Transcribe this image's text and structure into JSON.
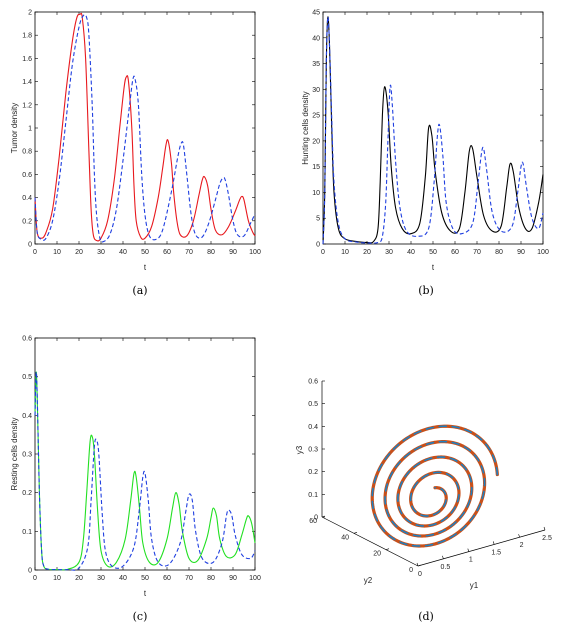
{
  "chart_data": [
    {
      "id": "a",
      "type": "line",
      "caption": "(a)",
      "xlabel": "t",
      "ylabel": "Tumor density",
      "xlim": [
        0,
        100
      ],
      "ylim": [
        0,
        2
      ],
      "xticks": [
        0,
        10,
        20,
        30,
        40,
        50,
        60,
        70,
        80,
        90,
        100
      ],
      "yticks": [
        0,
        0.2,
        0.4,
        0.6,
        0.8,
        1,
        1.2,
        1.4,
        1.6,
        1.8,
        2
      ],
      "ytick_labels": [
        "0",
        "0.2",
        "0.4",
        "0.6",
        "0.8",
        "1",
        "1.2",
        "1.4",
        "1.6",
        "1.8",
        "2"
      ],
      "series": [
        {
          "color": "#e8191e",
          "dash": "solid",
          "x": [
            0,
            1,
            3,
            5,
            8,
            11,
            14,
            17,
            19,
            20.5,
            21.5,
            23,
            24.5,
            25.5,
            26.5,
            28,
            30,
            33,
            36,
            38.5,
            40.5,
            41.5,
            42.5,
            44,
            45,
            46,
            48,
            50,
            53,
            56,
            58,
            59.5,
            60.5,
            62,
            63,
            64.5,
            66,
            69,
            72,
            74.5,
            76,
            77,
            78.5,
            80,
            82,
            85,
            88,
            91,
            93,
            94,
            95,
            97,
            99,
            100
          ],
          "y": [
            0.4,
            0.1,
            0.05,
            0.1,
            0.3,
            0.75,
            1.3,
            1.75,
            1.95,
            1.98,
            1.95,
            1.6,
            0.8,
            0.3,
            0.08,
            0.03,
            0.05,
            0.2,
            0.55,
            1.0,
            1.35,
            1.44,
            1.4,
            1.0,
            0.5,
            0.2,
            0.06,
            0.05,
            0.15,
            0.4,
            0.65,
            0.85,
            0.89,
            0.7,
            0.45,
            0.2,
            0.08,
            0.07,
            0.2,
            0.42,
            0.55,
            0.58,
            0.5,
            0.3,
            0.12,
            0.08,
            0.15,
            0.28,
            0.38,
            0.41,
            0.38,
            0.2,
            0.1,
            0.07
          ]
        },
        {
          "color": "#1f3fe0",
          "dash": "dashed",
          "x": [
            0,
            1,
            3,
            5,
            8,
            11,
            14,
            17,
            20,
            22,
            23.5,
            24.5,
            26,
            27,
            28,
            29.5,
            31,
            34,
            37,
            40,
            43,
            44.5,
            45.5,
            47,
            48.5,
            50,
            52,
            55,
            58,
            62,
            65,
            66.5,
            67.5,
            69,
            71,
            73,
            76,
            79,
            82,
            84,
            85.5,
            86.5,
            88,
            90,
            92,
            95,
            98,
            100
          ],
          "y": [
            0.4,
            0.1,
            0.04,
            0.05,
            0.2,
            0.55,
            1.05,
            1.55,
            1.87,
            1.97,
            1.95,
            1.8,
            1.2,
            0.6,
            0.25,
            0.05,
            0.02,
            0.08,
            0.3,
            0.72,
            1.2,
            1.42,
            1.42,
            1.2,
            0.6,
            0.25,
            0.07,
            0.04,
            0.12,
            0.45,
            0.76,
            0.87,
            0.85,
            0.6,
            0.25,
            0.08,
            0.06,
            0.18,
            0.38,
            0.52,
            0.57,
            0.55,
            0.42,
            0.2,
            0.08,
            0.07,
            0.18,
            0.26
          ]
        }
      ]
    },
    {
      "id": "b",
      "type": "line",
      "caption": "(b)",
      "xlabel": "t",
      "ylabel": "Hunting cells density",
      "xlim": [
        0,
        100
      ],
      "ylim": [
        0,
        45
      ],
      "xticks": [
        0,
        10,
        20,
        30,
        40,
        50,
        60,
        70,
        80,
        90,
        100
      ],
      "yticks": [
        0,
        5,
        10,
        15,
        20,
        25,
        30,
        35,
        40,
        45
      ],
      "ytick_labels": [
        "0",
        "5",
        "10",
        "15",
        "20",
        "25",
        "30",
        "35",
        "40",
        "45"
      ],
      "series": [
        {
          "color": "#000000",
          "dash": "solid",
          "x": [
            0,
            0.8,
            1.5,
            2.2,
            3,
            4,
            5,
            7,
            10,
            15,
            20,
            23,
            25,
            26,
            27,
            28,
            29.5,
            31,
            33,
            36,
            40,
            44,
            46.5,
            48,
            49.5,
            51,
            54,
            58,
            62,
            64.5,
            66.5,
            68,
            70,
            73,
            77,
            81,
            83.5,
            85,
            86.5,
            89,
            92,
            95,
            98,
            100
          ],
          "y": [
            0,
            10,
            35,
            44,
            38,
            22,
            10,
            3,
            1,
            0.5,
            0.3,
            0.5,
            3,
            12,
            25,
            30.5,
            26,
            15,
            7,
            3,
            2,
            4,
            13,
            22.5,
            21,
            14,
            6,
            2.5,
            3,
            10,
            18,
            18.5,
            13,
            5.5,
            2.5,
            3.5,
            11,
            15.5,
            14,
            7,
            3,
            3,
            8,
            13.5
          ]
        },
        {
          "color": "#1f3fe0",
          "dash": "dashed",
          "x": [
            0,
            0.8,
            1.5,
            2.2,
            3,
            4,
            5,
            7,
            10,
            15,
            20,
            25,
            27,
            28.5,
            29.5,
            30.5,
            31.5,
            33,
            35,
            38,
            43,
            48,
            50.5,
            52,
            53,
            54.5,
            56,
            59,
            63,
            68,
            70.5,
            72,
            73,
            74.5,
            77,
            81,
            86,
            88.5,
            90,
            91,
            92.5,
            95,
            98,
            100
          ],
          "y": [
            0,
            10,
            35,
            44,
            38,
            24,
            12,
            4,
            1,
            0.4,
            0.2,
            0.3,
            1.5,
            8,
            20,
            30.5,
            27,
            16,
            7,
            2.5,
            1.5,
            3,
            12,
            21,
            23,
            17,
            8,
            3,
            2,
            4,
            12,
            17.5,
            18.5,
            14,
            6,
            2.5,
            3.5,
            10,
            15,
            15.5,
            11,
            5,
            3,
            6
          ]
        }
      ]
    },
    {
      "id": "c",
      "type": "line",
      "caption": "(c)",
      "xlabel": "t",
      "ylabel": "Resting cells density",
      "xlim": [
        0,
        100
      ],
      "ylim": [
        0,
        0.6
      ],
      "xticks": [
        0,
        10,
        20,
        30,
        40,
        50,
        60,
        70,
        80,
        90,
        100
      ],
      "yticks": [
        0,
        0.1,
        0.2,
        0.3,
        0.4,
        0.5,
        0.6
      ],
      "ytick_labels": [
        "0",
        "0.1",
        "0.2",
        "0.3",
        "0.4",
        "0.5",
        "0.6"
      ],
      "series": [
        {
          "color": "#22e022",
          "dash": "solid",
          "x": [
            0,
            0.5,
            1,
            2,
            3,
            4,
            6,
            10,
            15,
            20,
            22,
            23.5,
            25,
            26,
            27,
            28.5,
            30,
            33,
            37,
            41,
            43.5,
            45,
            46,
            47.5,
            49,
            52,
            56,
            60,
            62.5,
            64,
            65.5,
            67,
            70,
            74,
            78,
            80,
            81,
            82.5,
            84,
            87,
            91,
            94,
            96,
            97,
            98.5,
            100
          ],
          "y": [
            0.4,
            0.51,
            0.45,
            0.2,
            0.05,
            0.01,
            0.002,
            0.001,
            0.002,
            0.02,
            0.08,
            0.2,
            0.33,
            0.345,
            0.3,
            0.15,
            0.05,
            0.01,
            0.02,
            0.08,
            0.18,
            0.25,
            0.24,
            0.16,
            0.07,
            0.02,
            0.02,
            0.08,
            0.16,
            0.2,
            0.17,
            0.1,
            0.03,
            0.025,
            0.08,
            0.135,
            0.16,
            0.14,
            0.08,
            0.035,
            0.04,
            0.09,
            0.13,
            0.14,
            0.12,
            0.07
          ]
        },
        {
          "color": "#1f3fe0",
          "dash": "dashed",
          "x": [
            0,
            0.5,
            1,
            2,
            3,
            4,
            6,
            10,
            15,
            20,
            24,
            25.5,
            27,
            28,
            29,
            30.5,
            32,
            35,
            40,
            45,
            47.5,
            49,
            50,
            51.5,
            53,
            56,
            61,
            66,
            68.5,
            70,
            71.5,
            73,
            76,
            81,
            85,
            87,
            88,
            89.5,
            91,
            94,
            98,
            100
          ],
          "y": [
            0.4,
            0.51,
            0.45,
            0.2,
            0.05,
            0.01,
            0.002,
            0.001,
            0.001,
            0.005,
            0.06,
            0.18,
            0.32,
            0.335,
            0.3,
            0.15,
            0.05,
            0.01,
            0.01,
            0.06,
            0.16,
            0.24,
            0.25,
            0.18,
            0.08,
            0.02,
            0.015,
            0.07,
            0.15,
            0.195,
            0.18,
            0.1,
            0.03,
            0.02,
            0.07,
            0.14,
            0.155,
            0.14,
            0.09,
            0.04,
            0.03,
            0.05
          ]
        }
      ]
    },
    {
      "id": "d",
      "type": "line",
      "caption": "(d)",
      "xlabel": "y1",
      "ylabel": "y2",
      "zlabel": "y3",
      "xticks": [
        0,
        0.5,
        1,
        1.5,
        2,
        2.5
      ],
      "xtick_labels": [
        "0",
        "0.5",
        "1",
        "1.5",
        "2",
        "2.5"
      ],
      "yticks": [
        0,
        20,
        40,
        60
      ],
      "ytick_labels": [
        "0",
        "20",
        "40",
        "60"
      ],
      "zticks": [
        0,
        0.1,
        0.2,
        0.3,
        0.4,
        0.5,
        0.6
      ],
      "ztick_labels": [
        "0",
        "0.1",
        "0.2",
        "0.3",
        "0.4",
        "0.5",
        "0.6"
      ],
      "xlim": [
        0,
        2.5
      ],
      "ylim": [
        0,
        60
      ],
      "zlim": [
        0,
        0.6
      ],
      "series": [
        {
          "color": "#c8501a",
          "dash": "solid",
          "width": 3.2
        },
        {
          "color": "#1e7fc0",
          "dash": "solid",
          "width": 1.6
        }
      ]
    }
  ]
}
